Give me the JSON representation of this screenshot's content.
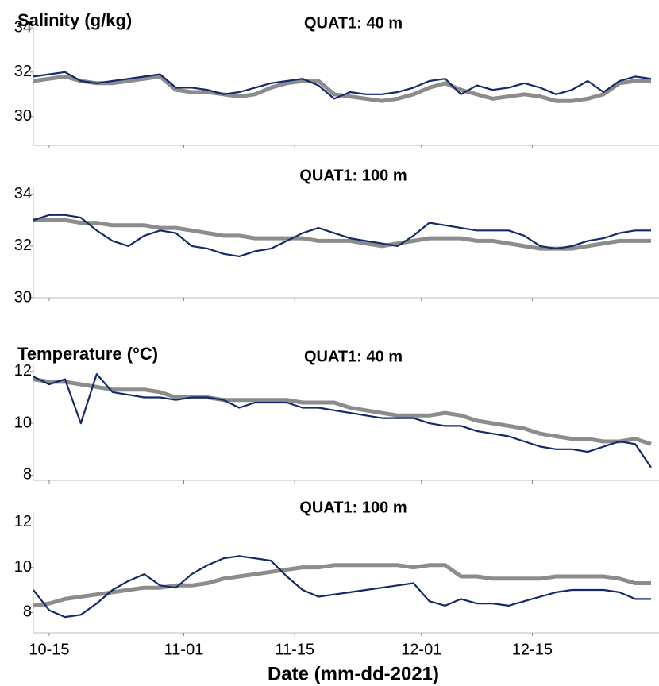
{
  "chart_data": [
    {
      "type": "line",
      "title": "QUAT1: 40 m",
      "ylabel": "Salinity (g/kg)",
      "x": [
        "10-13",
        "10-15",
        "10-17",
        "10-19",
        "10-21",
        "10-23",
        "10-25",
        "10-27",
        "10-29",
        "10-31",
        "11-02",
        "11-04",
        "11-06",
        "11-08",
        "11-10",
        "11-12",
        "11-14",
        "11-16",
        "11-18",
        "11-20",
        "11-22",
        "11-24",
        "11-26",
        "11-28",
        "11-30",
        "12-02",
        "12-04",
        "12-06",
        "12-08",
        "12-10",
        "12-12",
        "12-14",
        "12-16",
        "12-18",
        "12-20",
        "12-22",
        "12-24",
        "12-26",
        "12-28",
        "12-30"
      ],
      "series": [
        {
          "color": "#8c8c8c",
          "values": [
            31.6,
            31.7,
            31.8,
            31.6,
            31.5,
            31.5,
            31.6,
            31.7,
            31.8,
            31.2,
            31.1,
            31.1,
            31.0,
            30.9,
            31.0,
            31.3,
            31.5,
            31.6,
            31.6,
            31.0,
            30.9,
            30.8,
            30.7,
            30.8,
            31.0,
            31.3,
            31.5,
            31.2,
            31.0,
            30.8,
            30.9,
            31.0,
            30.9,
            30.7,
            30.7,
            30.8,
            31.0,
            31.5,
            31.6,
            31.6
          ]
        },
        {
          "color": "#13296b",
          "values": [
            31.8,
            31.9,
            32.0,
            31.6,
            31.5,
            31.6,
            31.7,
            31.8,
            31.9,
            31.3,
            31.3,
            31.2,
            31.0,
            31.1,
            31.3,
            31.5,
            31.6,
            31.7,
            31.4,
            30.8,
            31.1,
            31.0,
            31.0,
            31.1,
            31.3,
            31.6,
            31.7,
            31.0,
            31.4,
            31.2,
            31.3,
            31.5,
            31.3,
            31.0,
            31.2,
            31.6,
            31.1,
            31.6,
            31.8,
            31.7
          ]
        }
      ],
      "xlim": [
        "10-13",
        "12-31"
      ],
      "xticks": [
        "10-15",
        "11-01",
        "11-15",
        "12-01",
        "12-15"
      ],
      "ylim": [
        28.7,
        34
      ],
      "yticks": [
        30,
        32,
        34
      ]
    },
    {
      "type": "line",
      "title": "QUAT1: 100 m",
      "x": [
        "10-13",
        "10-15",
        "10-17",
        "10-19",
        "10-21",
        "10-23",
        "10-25",
        "10-27",
        "10-29",
        "10-31",
        "11-02",
        "11-04",
        "11-06",
        "11-08",
        "11-10",
        "11-12",
        "11-14",
        "11-16",
        "11-18",
        "11-20",
        "11-22",
        "11-24",
        "11-26",
        "11-28",
        "11-30",
        "12-02",
        "12-04",
        "12-06",
        "12-08",
        "12-10",
        "12-12",
        "12-14",
        "12-16",
        "12-18",
        "12-20",
        "12-22",
        "12-24",
        "12-26",
        "12-28",
        "12-30"
      ],
      "series": [
        {
          "color": "#8c8c8c",
          "values": [
            33.0,
            33.0,
            33.0,
            32.9,
            32.9,
            32.8,
            32.8,
            32.8,
            32.7,
            32.7,
            32.6,
            32.5,
            32.4,
            32.4,
            32.3,
            32.3,
            32.3,
            32.3,
            32.2,
            32.2,
            32.2,
            32.1,
            32.0,
            32.1,
            32.2,
            32.3,
            32.3,
            32.3,
            32.2,
            32.2,
            32.1,
            32.0,
            31.9,
            31.9,
            31.9,
            32.0,
            32.1,
            32.2,
            32.2,
            32.2
          ]
        },
        {
          "color": "#13296b",
          "values": [
            33.0,
            33.2,
            33.2,
            33.1,
            32.6,
            32.2,
            32.0,
            32.4,
            32.6,
            32.5,
            32.0,
            31.9,
            31.7,
            31.6,
            31.8,
            31.9,
            32.2,
            32.5,
            32.7,
            32.5,
            32.3,
            32.2,
            32.1,
            32.0,
            32.4,
            32.9,
            32.8,
            32.7,
            32.6,
            32.6,
            32.6,
            32.4,
            32.0,
            31.9,
            32.0,
            32.2,
            32.3,
            32.5,
            32.6,
            32.6
          ]
        }
      ],
      "xlim": [
        "10-13",
        "12-31"
      ],
      "xticks": [
        "10-15",
        "11-01",
        "11-15",
        "12-01",
        "12-15"
      ],
      "ylim": [
        30,
        34.3
      ],
      "yticks": [
        30,
        32,
        34
      ]
    },
    {
      "type": "line",
      "title": "QUAT1: 40 m",
      "ylabel": "Temperature (°C)",
      "x": [
        "10-13",
        "10-15",
        "10-17",
        "10-19",
        "10-21",
        "10-23",
        "10-25",
        "10-27",
        "10-29",
        "10-31",
        "11-02",
        "11-04",
        "11-06",
        "11-08",
        "11-10",
        "11-12",
        "11-14",
        "11-16",
        "11-18",
        "11-20",
        "11-22",
        "11-24",
        "11-26",
        "11-28",
        "11-30",
        "12-02",
        "12-04",
        "12-06",
        "12-08",
        "12-10",
        "12-12",
        "12-14",
        "12-16",
        "12-18",
        "12-20",
        "12-22",
        "12-24",
        "12-26",
        "12-28",
        "12-30"
      ],
      "series": [
        {
          "color": "#8c8c8c",
          "values": [
            11.7,
            11.6,
            11.6,
            11.5,
            11.4,
            11.3,
            11.3,
            11.3,
            11.2,
            11.0,
            11.0,
            11.0,
            10.9,
            10.9,
            10.9,
            10.9,
            10.9,
            10.8,
            10.8,
            10.8,
            10.6,
            10.5,
            10.4,
            10.3,
            10.3,
            10.3,
            10.4,
            10.3,
            10.1,
            10.0,
            9.9,
            9.8,
            9.6,
            9.5,
            9.4,
            9.4,
            9.3,
            9.3,
            9.4,
            9.2
          ]
        },
        {
          "color": "#13296b",
          "values": [
            11.8,
            11.5,
            11.7,
            10.0,
            11.9,
            11.2,
            11.1,
            11.0,
            11.0,
            10.9,
            11.0,
            11.0,
            10.9,
            10.6,
            10.8,
            10.8,
            10.8,
            10.6,
            10.6,
            10.5,
            10.4,
            10.3,
            10.2,
            10.2,
            10.2,
            10.0,
            9.9,
            9.9,
            9.7,
            9.6,
            9.5,
            9.3,
            9.1,
            9.0,
            9.0,
            8.9,
            9.1,
            9.3,
            9.2,
            8.3
          ]
        }
      ],
      "xlim": [
        "10-13",
        "12-31"
      ],
      "xticks": [
        "10-15",
        "11-01",
        "11-15",
        "12-01",
        "12-15"
      ],
      "ylim": [
        7.8,
        12.3
      ],
      "yticks": [
        8,
        10,
        12
      ]
    },
    {
      "type": "line",
      "title": "QUAT1: 100 m",
      "xlabel": "Date (mm-dd-2021)",
      "x": [
        "10-13",
        "10-15",
        "10-17",
        "10-19",
        "10-21",
        "10-23",
        "10-25",
        "10-27",
        "10-29",
        "10-31",
        "11-02",
        "11-04",
        "11-06",
        "11-08",
        "11-10",
        "11-12",
        "11-14",
        "11-16",
        "11-18",
        "11-20",
        "11-22",
        "11-24",
        "11-26",
        "11-28",
        "11-30",
        "12-02",
        "12-04",
        "12-06",
        "12-08",
        "12-10",
        "12-12",
        "12-14",
        "12-16",
        "12-18",
        "12-20",
        "12-22",
        "12-24",
        "12-26",
        "12-28",
        "12-30"
      ],
      "series": [
        {
          "color": "#8c8c8c",
          "values": [
            8.3,
            8.4,
            8.6,
            8.7,
            8.8,
            8.9,
            9.0,
            9.1,
            9.1,
            9.2,
            9.2,
            9.3,
            9.5,
            9.6,
            9.7,
            9.8,
            9.9,
            10.0,
            10.0,
            10.1,
            10.1,
            10.1,
            10.1,
            10.1,
            10.0,
            10.1,
            10.1,
            9.6,
            9.6,
            9.5,
            9.5,
            9.5,
            9.5,
            9.6,
            9.6,
            9.6,
            9.6,
            9.5,
            9.3,
            9.3
          ]
        },
        {
          "color": "#13296b",
          "values": [
            9.0,
            8.1,
            7.8,
            7.9,
            8.4,
            9.0,
            9.4,
            9.7,
            9.2,
            9.1,
            9.7,
            10.1,
            10.4,
            10.5,
            10.4,
            10.3,
            9.6,
            9.0,
            8.7,
            8.8,
            8.9,
            9.0,
            9.1,
            9.2,
            9.3,
            8.5,
            8.3,
            8.6,
            8.4,
            8.4,
            8.3,
            8.5,
            8.7,
            8.9,
            9.0,
            9.0,
            9.0,
            8.9,
            8.6,
            8.6
          ]
        }
      ],
      "xlim": [
        "10-13",
        "12-31"
      ],
      "xticks": [
        "10-15",
        "11-01",
        "11-15",
        "12-01",
        "12-15"
      ],
      "show_xtick_labels": true,
      "ylim": [
        7.1,
        12.45
      ],
      "yticks": [
        8,
        10,
        12
      ]
    }
  ]
}
